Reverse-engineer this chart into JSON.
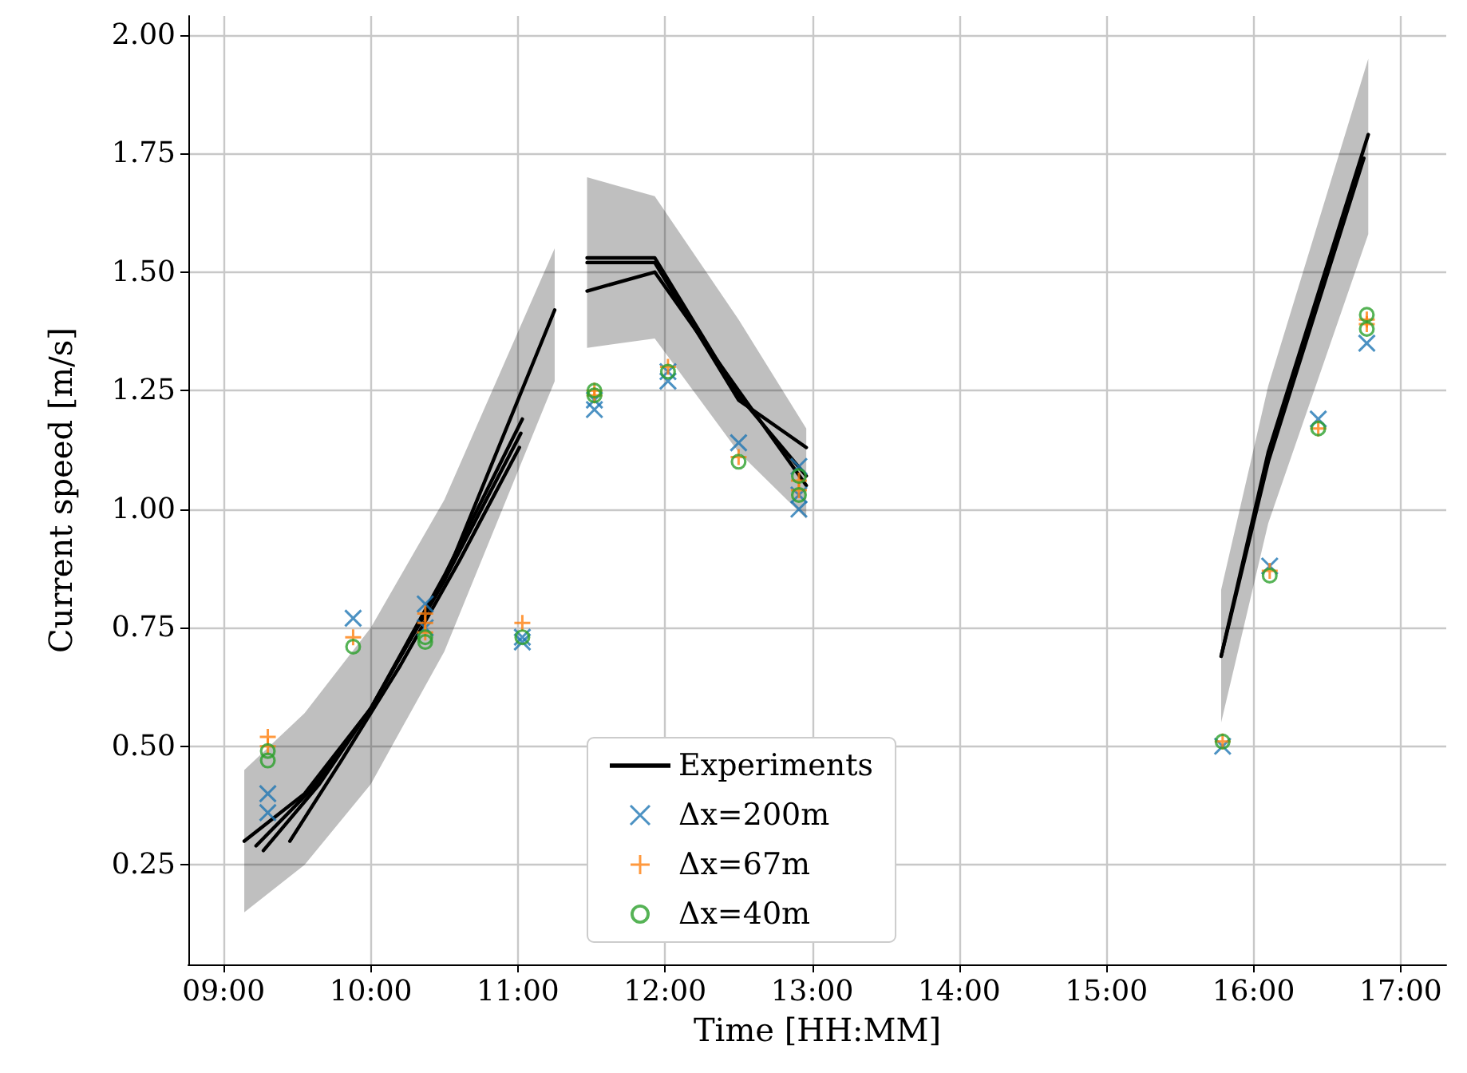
{
  "chart_data": {
    "type": "line",
    "xlabel": "Time [HH:MM]",
    "ylabel": "Current speed [m/s]",
    "xlim": [
      8.76,
      17.31
    ],
    "ylim": [
      0.04,
      2.04
    ],
    "xticks": [
      {
        "value": 9,
        "label": "09:00"
      },
      {
        "value": 10,
        "label": "10:00"
      },
      {
        "value": 11,
        "label": "11:00"
      },
      {
        "value": 12,
        "label": "12:00"
      },
      {
        "value": 13,
        "label": "13:00"
      },
      {
        "value": 14,
        "label": "14:00"
      },
      {
        "value": 15,
        "label": "15:00"
      },
      {
        "value": 16,
        "label": "16:00"
      },
      {
        "value": 17,
        "label": "17:00"
      }
    ],
    "yticks": [
      {
        "value": 0.25,
        "label": "0.25"
      },
      {
        "value": 0.5,
        "label": "0.50"
      },
      {
        "value": 0.75,
        "label": "0.75"
      },
      {
        "value": 1,
        "label": "1.00"
      },
      {
        "value": 1.25,
        "label": "1.25"
      },
      {
        "value": 1.5,
        "label": "1.50"
      },
      {
        "value": 1.75,
        "label": "1.75"
      },
      {
        "value": 2,
        "label": "2.00"
      }
    ],
    "grid": true,
    "legend": "bottom",
    "series": [
      {
        "name": "Experiments",
        "color": "#000000",
        "marker": "none",
        "x": [
          9.14,
          9.55,
          10.0,
          10.5,
          11.25
        ],
        "values": [
          0.3,
          0.4,
          0.58,
          0.85,
          1.42
        ],
        "lower": [
          0.15,
          0.25,
          0.42,
          0.7,
          1.27
        ],
        "upper": [
          0.45,
          0.57,
          0.75,
          1.02,
          1.55
        ]
      },
      {
        "color": "#000000",
        "marker": "none",
        "x": [
          9.22,
          9.6,
          10.0,
          10.5,
          11.03
        ],
        "values": [
          0.29,
          0.41,
          0.58,
          0.86,
          1.19
        ]
      },
      {
        "color": "#000000",
        "marker": "none",
        "x": [
          9.27,
          9.65,
          10.0,
          10.5,
          11.02
        ],
        "values": [
          0.28,
          0.42,
          0.58,
          0.85,
          1.16
        ]
      },
      {
        "color": "#000000",
        "marker": "none",
        "x": [
          9.45,
          9.8,
          10.2,
          10.6,
          11.01
        ],
        "values": [
          0.3,
          0.47,
          0.67,
          0.89,
          1.13
        ]
      },
      {
        "color": "#000000",
        "marker": "none",
        "x": [
          11.47,
          11.93,
          12.5,
          12.96
        ],
        "values": [
          1.52,
          1.52,
          1.23,
          1.13
        ],
        "lower": [
          1.34,
          1.36,
          1.12,
          0.98
        ],
        "upper": [
          1.7,
          1.66,
          1.4,
          1.17
        ]
      },
      {
        "color": "#000000",
        "marker": "none",
        "x": [
          11.47,
          11.93,
          12.5,
          12.96
        ],
        "values": [
          1.46,
          1.5,
          1.25,
          1.05
        ]
      },
      {
        "color": "#000000",
        "marker": "none",
        "x": [
          11.47,
          11.93,
          12.5,
          12.96
        ],
        "values": [
          1.53,
          1.53,
          1.24,
          1.07
        ]
      },
      {
        "color": "#000000",
        "marker": "none",
        "x": [
          15.78,
          16.1,
          16.78
        ],
        "values": [
          0.69,
          1.12,
          1.79
        ],
        "lower": [
          0.55,
          0.97,
          1.58
        ],
        "upper": [
          0.83,
          1.26,
          1.95
        ]
      },
      {
        "color": "#000000",
        "marker": "none",
        "x": [
          15.78,
          16.1,
          16.75
        ],
        "values": [
          0.69,
          1.1,
          1.74
        ]
      },
      {
        "name": "Δx=200m",
        "type": "scatter",
        "color": "#1f77b4",
        "marker": "cross",
        "x": [
          9.3,
          9.3,
          9.88,
          10.37,
          10.37,
          11.03,
          11.03,
          11.52,
          11.52,
          12.02,
          12.02,
          12.5,
          12.91,
          12.91,
          12.91,
          15.79,
          16.11,
          16.44,
          16.77
        ],
        "values": [
          0.4,
          0.36,
          0.77,
          0.8,
          0.75,
          0.73,
          0.72,
          1.21,
          1.23,
          1.27,
          1.29,
          1.14,
          1.09,
          1.0,
          1.03,
          0.5,
          0.88,
          1.19,
          1.35
        ]
      },
      {
        "name": "Δx=67m",
        "type": "scatter",
        "color": "#ff7f0e",
        "marker": "plus",
        "x": [
          9.3,
          9.3,
          9.88,
          10.37,
          10.37,
          10.37,
          11.03,
          11.52,
          11.52,
          12.02,
          12.5,
          12.91,
          12.91,
          15.79,
          16.11,
          16.44,
          16.77,
          16.77
        ],
        "values": [
          0.52,
          0.5,
          0.73,
          0.78,
          0.76,
          0.74,
          0.76,
          1.25,
          1.24,
          1.3,
          1.11,
          1.06,
          1.04,
          0.51,
          0.87,
          1.17,
          1.4,
          1.39
        ]
      },
      {
        "name": "Δx=40m",
        "type": "scatter",
        "color": "#2ca02c",
        "marker": "circle",
        "x": [
          9.3,
          9.3,
          9.88,
          10.37,
          10.37,
          11.03,
          11.52,
          11.52,
          12.02,
          12.5,
          12.91,
          12.91,
          15.79,
          16.11,
          16.44,
          16.77,
          16.77
        ],
        "values": [
          0.49,
          0.47,
          0.71,
          0.73,
          0.72,
          0.73,
          1.24,
          1.25,
          1.29,
          1.1,
          1.07,
          1.03,
          0.51,
          0.86,
          1.17,
          1.41,
          1.38
        ]
      }
    ]
  }
}
